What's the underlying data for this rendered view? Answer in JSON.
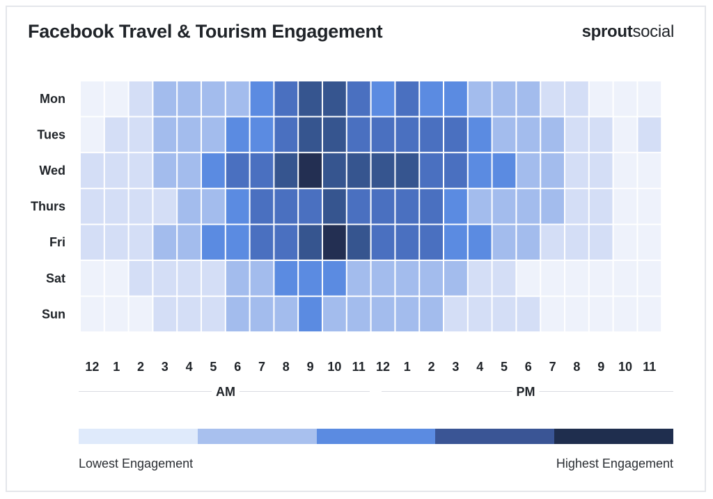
{
  "header": {
    "title": "Facebook Travel & Tourism Engagement",
    "brand_part1": "sprout",
    "brand_part2": "social"
  },
  "axis": {
    "am_label": "AM",
    "pm_label": "PM"
  },
  "legend": {
    "low_label": "Lowest Engagement",
    "high_label": "Highest Engagement",
    "colors": [
      "#dfeafb",
      "#a8c0ee",
      "#5b8be1",
      "#3a5595",
      "#1f2e4e"
    ]
  },
  "chart_data": {
    "type": "heatmap",
    "title": "Facebook Travel & Tourism Engagement",
    "rows": [
      "Mon",
      "Tues",
      "Wed",
      "Thurs",
      "Fri",
      "Sat",
      "Sun"
    ],
    "columns": [
      "12",
      "1",
      "2",
      "3",
      "4",
      "5",
      "6",
      "7",
      "8",
      "9",
      "10",
      "11",
      "12",
      "1",
      "2",
      "3",
      "4",
      "5",
      "6",
      "7",
      "8",
      "9",
      "10",
      "11"
    ],
    "column_groups": [
      {
        "label": "AM",
        "from": 0,
        "to": 11
      },
      {
        "label": "PM",
        "from": 12,
        "to": 23
      }
    ],
    "scale": [
      "#eef2fb",
      "#d4def6",
      "#a3bced",
      "#5b8be1",
      "#4a70c0",
      "#36558f",
      "#232f52"
    ],
    "scale_note": "levels 0 (lowest) to 6 (highest engagement)",
    "values": [
      [
        0,
        0,
        1,
        2,
        2,
        2,
        2,
        3,
        4,
        5,
        5,
        4,
        3,
        4,
        3,
        3,
        2,
        2,
        2,
        1,
        1,
        0,
        0,
        0
      ],
      [
        0,
        1,
        1,
        2,
        2,
        2,
        3,
        3,
        4,
        5,
        5,
        4,
        4,
        4,
        4,
        4,
        3,
        2,
        2,
        2,
        1,
        1,
        0,
        1
      ],
      [
        1,
        1,
        1,
        2,
        2,
        3,
        4,
        4,
        5,
        6,
        5,
        5,
        5,
        5,
        4,
        4,
        3,
        3,
        2,
        2,
        1,
        1,
        0,
        0
      ],
      [
        1,
        1,
        1,
        1,
        2,
        2,
        3,
        4,
        4,
        4,
        5,
        4,
        4,
        4,
        4,
        3,
        2,
        2,
        2,
        2,
        1,
        1,
        0,
        0
      ],
      [
        1,
        1,
        1,
        2,
        2,
        3,
        3,
        4,
        4,
        5,
        6,
        5,
        4,
        4,
        4,
        3,
        3,
        2,
        2,
        1,
        1,
        1,
        0,
        0
      ],
      [
        0,
        0,
        1,
        1,
        1,
        1,
        2,
        2,
        3,
        3,
        3,
        2,
        2,
        2,
        2,
        2,
        1,
        1,
        0,
        0,
        0,
        0,
        0,
        0
      ],
      [
        0,
        0,
        0,
        1,
        1,
        1,
        2,
        2,
        2,
        3,
        2,
        2,
        2,
        2,
        2,
        1,
        1,
        1,
        1,
        0,
        0,
        0,
        0,
        0
      ]
    ]
  }
}
